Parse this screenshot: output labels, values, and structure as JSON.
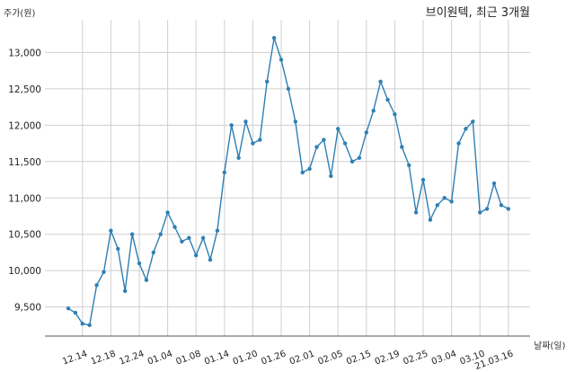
{
  "chart_data": {
    "type": "line",
    "title": "브이원텍, 최근 3개월",
    "ylabel": "주가(원)",
    "xlabel": "날짜(일)",
    "ylim": [
      9100,
      13450
    ],
    "yticks": [
      9500,
      10000,
      10500,
      11000,
      11500,
      12000,
      12500,
      13000
    ],
    "ytick_labels": [
      "9,500",
      "10,000",
      "10,500",
      "11,000",
      "11,500",
      "12,000",
      "12,500",
      "13,000"
    ],
    "xtick_labels": [
      "12.14",
      "12.18",
      "12.24",
      "01.04",
      "01.08",
      "01.14",
      "01.20",
      "01.26",
      "02.01",
      "02.05",
      "02.15",
      "02.19",
      "02.25",
      "03.04",
      "03.10",
      "21.03.16"
    ],
    "xtick_index": [
      2,
      6,
      10,
      14,
      18,
      22,
      26,
      30,
      34,
      38,
      42,
      46,
      50,
      54,
      58,
      62
    ],
    "grid": true,
    "line_color": "#2e7fb4",
    "series": [
      {
        "values": [
          9480,
          9420,
          9270,
          9250,
          9800,
          9980,
          10550,
          10300,
          9720,
          10500,
          10100,
          9870,
          10250,
          10500,
          10800,
          10600,
          10400,
          10450,
          10210,
          10450,
          10150,
          10550,
          11350,
          12000,
          11550,
          12050,
          11750,
          11800,
          12600,
          13200,
          12900,
          12500,
          12050,
          11350,
          11400,
          11700,
          11800,
          11300,
          11950,
          11750,
          11500,
          11550,
          11900,
          12200,
          12600,
          12350,
          12150,
          11700,
          11450,
          10800,
          11250,
          10700,
          10900,
          11000,
          10950,
          11750,
          11950,
          12050,
          10800,
          10850,
          11200,
          10900,
          10850
        ]
      }
    ]
  }
}
